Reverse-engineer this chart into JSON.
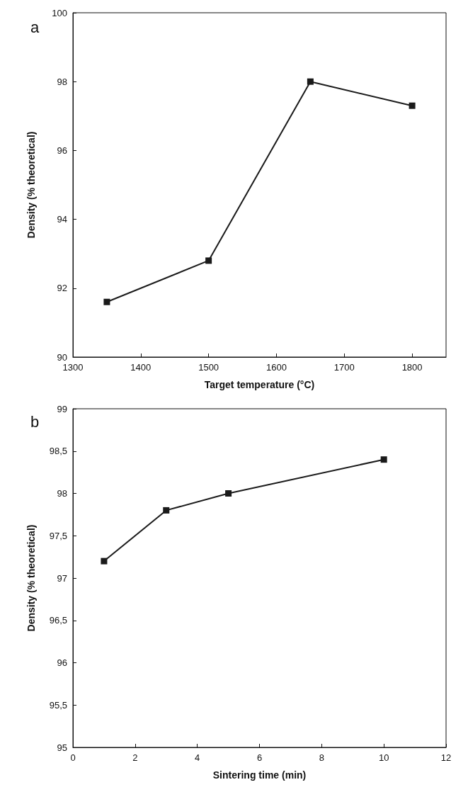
{
  "chart_data": [
    {
      "type": "line",
      "title": "a",
      "xlabel": "Target temperature (°C)",
      "ylabel": "Density (% theoretical)",
      "x": [
        1350,
        1500,
        1650,
        1800
      ],
      "values": [
        91.6,
        92.8,
        98.0,
        97.3
      ],
      "color": "#1a1a1a",
      "xlim": [
        1300,
        1850
      ],
      "xticks": [
        1300,
        1400,
        1500,
        1600,
        1700,
        1800
      ],
      "ylim": [
        90,
        100
      ],
      "yticks": [
        90,
        92,
        94,
        96,
        98,
        100
      ],
      "marker": "square",
      "line_style": "solid",
      "grid": false
    },
    {
      "type": "line",
      "title": "b",
      "xlabel": "Sintering time (min)",
      "ylabel": "Density (% theoretical)",
      "x": [
        1,
        3,
        5,
        10
      ],
      "values": [
        97.2,
        97.8,
        98.0,
        98.4
      ],
      "color": "#1a1a1a",
      "xlim": [
        0,
        12
      ],
      "xticks": [
        0,
        2,
        4,
        6,
        8,
        10,
        12
      ],
      "ylim": [
        95,
        99
      ],
      "yticks": [
        95,
        {
          "value": 95.5,
          "label": "95,5"
        },
        96,
        {
          "value": 96.5,
          "label": "96,5"
        },
        97,
        {
          "value": 97.5,
          "label": "97,5"
        },
        98,
        {
          "value": 98.5,
          "label": "98,5"
        },
        99
      ],
      "marker": "square",
      "line_style": "solid",
      "grid": false
    }
  ]
}
